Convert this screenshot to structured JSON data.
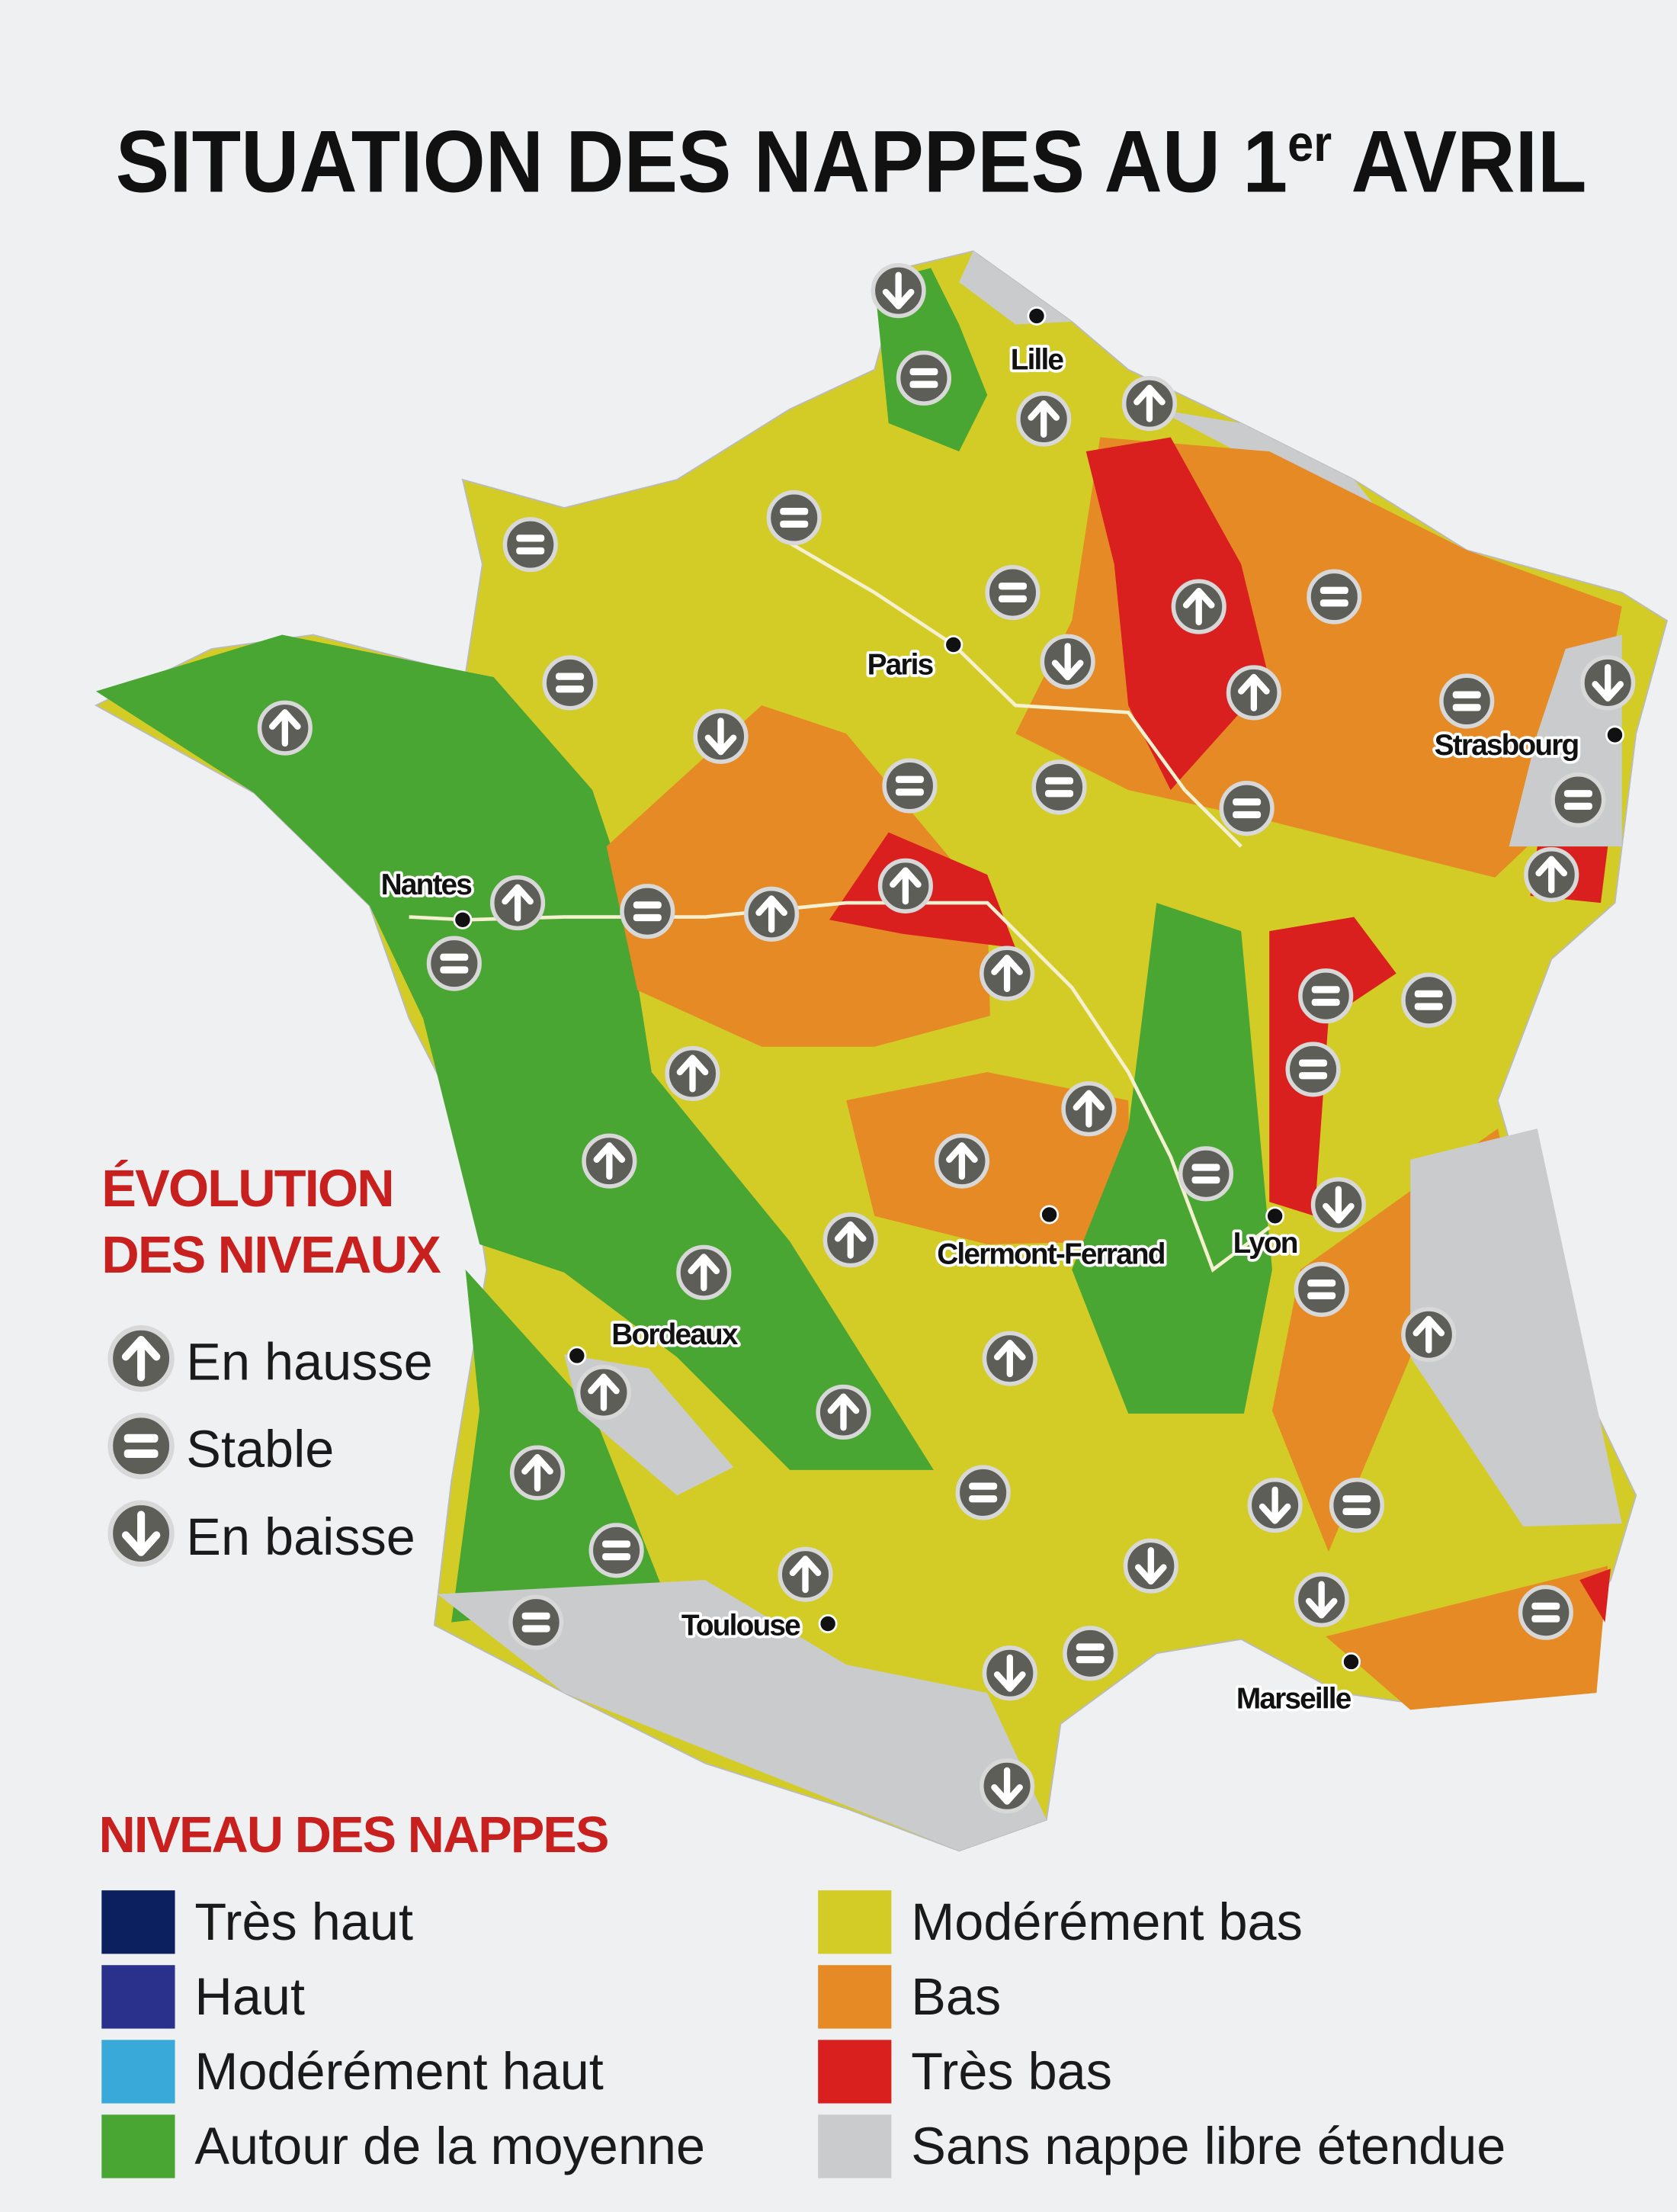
{
  "title": {
    "main": "SITUATION DES NAPPES AU 1",
    "sup": "er",
    "end": " AVRIL"
  },
  "cities": [
    "Lille",
    "Paris",
    "Strasbourg",
    "Nantes",
    "Clermont-Ferrand",
    "Lyon",
    "Bordeaux",
    "Toulouse",
    "Marseille"
  ],
  "evolution": {
    "title_lines": [
      "ÉVOLUTION",
      "DES NIVEAUX"
    ],
    "items": [
      "En hausse",
      "Stable",
      "En baisse"
    ]
  },
  "levels": {
    "title": "NIVEAU DES NAPPES",
    "items": [
      {
        "label": "Très haut",
        "color": "#0c1f5e"
      },
      {
        "label": "Haut",
        "color": "#2a318c"
      },
      {
        "label": "Modérément haut",
        "color": "#38a9d9"
      },
      {
        "label": "Autour de la moyenne",
        "color": "#4aa632"
      },
      {
        "label": "Modérément bas",
        "color": "#d3cc27"
      },
      {
        "label": "Bas",
        "color": "#e58a24"
      },
      {
        "label": "Très bas",
        "color": "#d9201f"
      },
      {
        "label": "Sans nappe libre étendue",
        "color": "#c9cbcc"
      }
    ]
  }
}
